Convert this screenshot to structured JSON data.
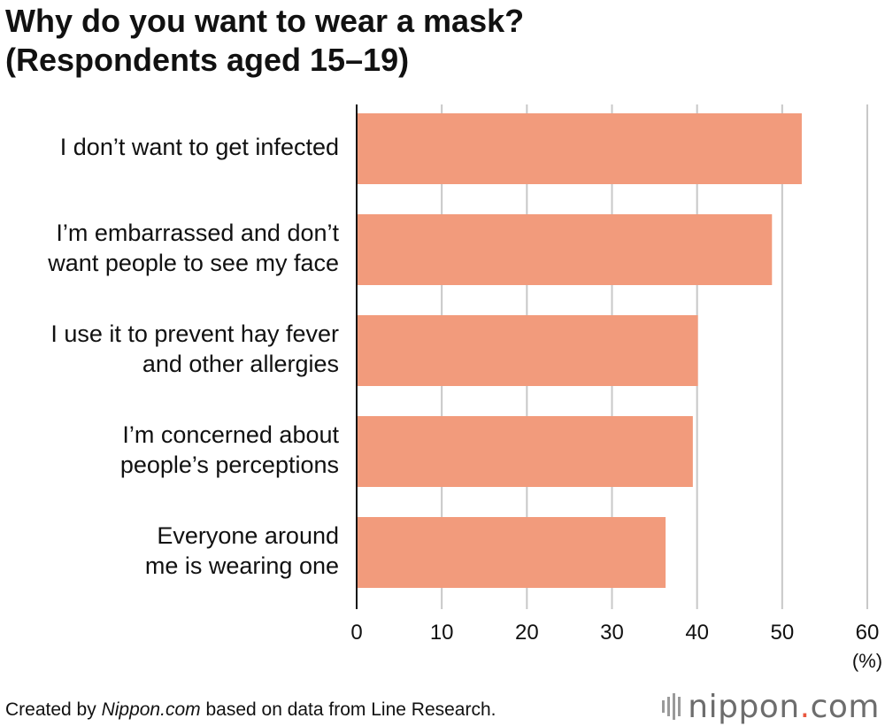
{
  "title": {
    "line1": "Why do you want to wear a mask?",
    "line2": "(Respondents aged 15–19)"
  },
  "chart_data": {
    "type": "bar",
    "orientation": "horizontal",
    "categories": [
      [
        "I don’t want to get infected"
      ],
      [
        "I’m embarrassed and don’t",
        "want people to see my face"
      ],
      [
        "I use it to prevent hay fever",
        "and other allergies"
      ],
      [
        "I’m concerned about",
        "people’s perceptions"
      ],
      [
        "Everyone around",
        "me is wearing one"
      ]
    ],
    "values": [
      52.3,
      48.8,
      40.1,
      39.5,
      36.3
    ],
    "xlim": [
      0,
      60
    ],
    "xticks": [
      0,
      10,
      20,
      30,
      40,
      50,
      60
    ],
    "unit": "(%)",
    "grid": true,
    "bar_color": "#f29b7c",
    "grid_color": "#c8c8c8",
    "axis_color": "#111111"
  },
  "footer": {
    "prefix": "Created by ",
    "source_name": "Nippon.com",
    "suffix": " based on data from Line Research."
  },
  "logo": {
    "text_main": "nippon",
    "text_dot": ".",
    "text_tail": "com",
    "accent": "#e9573f"
  }
}
